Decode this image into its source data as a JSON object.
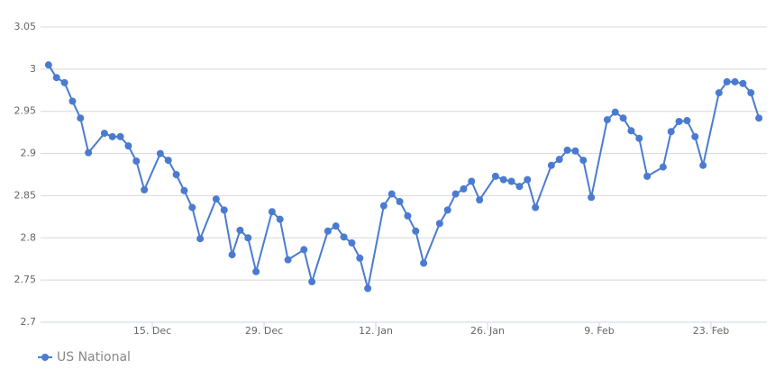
{
  "chart_data": {
    "type": "line",
    "x": [
      "2. Dec",
      "3. Dec",
      "4. Dec",
      "5. Dec",
      "6. Dec",
      "7. Dec",
      "9. Dec",
      "10. Dec",
      "11. Dec",
      "12. Dec",
      "13. Dec",
      "14. Dec",
      "16. Dec",
      "17. Dec",
      "18. Dec",
      "19. Dec",
      "20. Dec",
      "21. Dec",
      "23. Dec",
      "24. Dec",
      "25. Dec",
      "26. Dec",
      "27. Dec",
      "28. Dec",
      "30. Dec",
      "31. Dec",
      "1. Jan",
      "3. Jan",
      "4. Jan",
      "6. Jan",
      "7. Jan",
      "8. Jan",
      "9. Jan",
      "10. Jan",
      "11. Jan",
      "13. Jan",
      "14. Jan",
      "15. Jan",
      "16. Jan",
      "17. Jan",
      "18. Jan",
      "20. Jan",
      "21. Jan",
      "22. Jan",
      "23. Jan",
      "24. Jan",
      "25. Jan",
      "27. Jan",
      "28. Jan",
      "29. Jan",
      "30. Jan",
      "31. Jan",
      "1. Feb",
      "3. Feb",
      "4. Feb",
      "5. Feb",
      "6. Feb",
      "7. Feb",
      "8. Feb",
      "10. Feb",
      "11. Feb",
      "12. Feb",
      "13. Feb",
      "14. Feb",
      "15. Feb",
      "17. Feb",
      "18. Feb",
      "19. Feb",
      "20. Feb",
      "21. Feb",
      "22. Feb",
      "24. Feb",
      "25. Feb",
      "26. Feb",
      "27. Feb",
      "28. Feb",
      "1. Mar"
    ],
    "series": [
      {
        "name": "US National",
        "color": "#4a7bd0",
        "values": [
          3.005,
          2.99,
          2.984,
          2.962,
          2.942,
          2.901,
          2.924,
          2.92,
          2.92,
          2.909,
          2.891,
          2.857,
          2.9,
          2.892,
          2.875,
          2.856,
          2.836,
          2.799,
          2.846,
          2.833,
          2.78,
          2.809,
          2.8,
          2.76,
          2.831,
          2.822,
          2.774,
          2.786,
          2.748,
          2.808,
          2.814,
          2.801,
          2.794,
          2.776,
          2.74,
          2.838,
          2.852,
          2.843,
          2.826,
          2.808,
          2.77,
          2.817,
          2.833,
          2.852,
          2.858,
          2.867,
          2.845,
          2.873,
          2.869,
          2.867,
          2.861,
          2.869,
          2.836,
          2.886,
          2.893,
          2.904,
          2.903,
          2.892,
          2.848,
          2.94,
          2.949,
          2.942,
          2.927,
          2.918,
          2.873,
          2.884,
          2.926,
          2.938,
          2.939,
          2.92,
          2.886,
          2.972,
          2.985,
          2.985,
          2.983,
          2.972,
          2.942
        ]
      }
    ],
    "xlim": [
      "1. Dec",
      "2. Mar"
    ],
    "xticks": [
      "15. Dec",
      "29. Dec",
      "12. Jan",
      "26. Jan",
      "9. Feb",
      "23. Feb"
    ],
    "ylim": [
      2.7,
      3.05
    ],
    "yticks": [
      2.7,
      2.75,
      2.8,
      2.85,
      2.9,
      2.95,
      3,
      3.05
    ],
    "grid": true,
    "legend": "bottom-left"
  }
}
